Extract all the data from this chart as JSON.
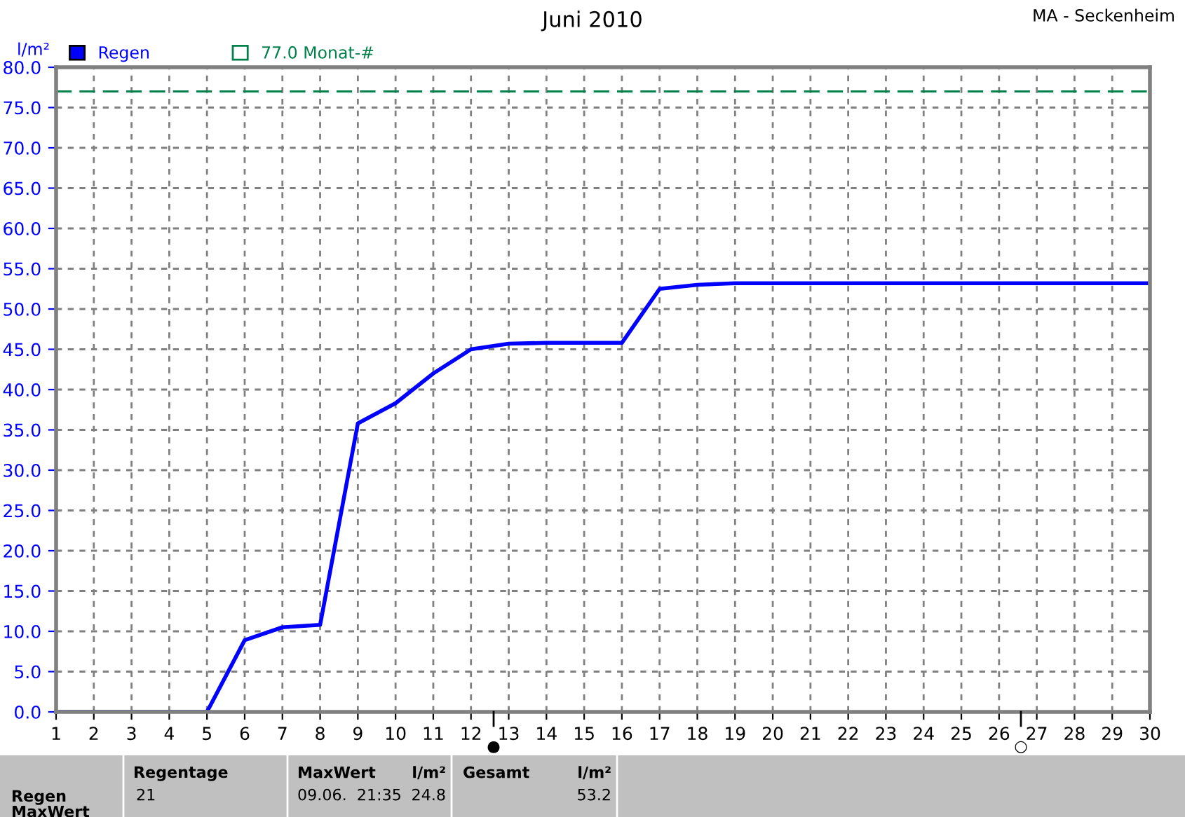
{
  "chart_data": {
    "type": "line",
    "title": "Juni 2010",
    "subtitle": "MA - Seckenheim",
    "ylabel": "l/m²",
    "x": [
      1,
      5,
      6,
      7,
      8,
      9,
      10,
      11,
      12,
      13,
      14,
      16,
      17,
      18,
      19,
      30
    ],
    "series": [
      {
        "name": "Regen",
        "color": "#0000ff",
        "values": [
          0,
          0,
          8.9,
          10.5,
          10.8,
          35.8,
          38.3,
          42.0,
          45.0,
          45.7,
          45.8,
          45.8,
          52.5,
          53.0,
          53.2,
          53.2
        ]
      }
    ],
    "xlim": [
      1,
      30
    ],
    "xticks": [
      1,
      2,
      3,
      4,
      5,
      6,
      7,
      8,
      9,
      10,
      11,
      12,
      13,
      14,
      15,
      16,
      17,
      18,
      19,
      20,
      21,
      22,
      23,
      24,
      25,
      26,
      27,
      28,
      29,
      30
    ],
    "ylim": [
      0,
      80
    ],
    "yticks": [
      {
        "value": 0,
        "label": "0.0"
      },
      {
        "value": 5,
        "label": "5.0"
      },
      {
        "value": 10,
        "label": "10.0"
      },
      {
        "value": 15,
        "label": "15.0"
      },
      {
        "value": 20,
        "label": "20.0"
      },
      {
        "value": 25,
        "label": "25.0"
      },
      {
        "value": 30,
        "label": "30.0"
      },
      {
        "value": 35,
        "label": "35.0"
      },
      {
        "value": 40,
        "label": "40.0"
      },
      {
        "value": 45,
        "label": "45.0"
      },
      {
        "value": 50,
        "label": "50.0"
      },
      {
        "value": 55,
        "label": "55.0"
      },
      {
        "value": 60,
        "label": "60.0"
      },
      {
        "value": 65,
        "label": "65.0"
      },
      {
        "value": 70,
        "label": "70.0"
      },
      {
        "value": 75,
        "label": "75.0"
      },
      {
        "value": 80,
        "label": "80.0"
      }
    ],
    "ref_lines": [
      {
        "axis": "y",
        "value": 77.0,
        "label": "77.0 Monat-#",
        "color": "#00804a",
        "line_style": "dashed"
      }
    ],
    "grid": true,
    "legend": "top left",
    "marker": "none",
    "line_style": "solid",
    "annotations": [
      "Regentage",
      "21",
      "MaxWert",
      "l/m²",
      "09.06.  21:35",
      "24.8",
      "Gesamt",
      "l/m²",
      "53.2",
      "Regen",
      "MaxWert",
      "●",
      "○"
    ]
  }
}
